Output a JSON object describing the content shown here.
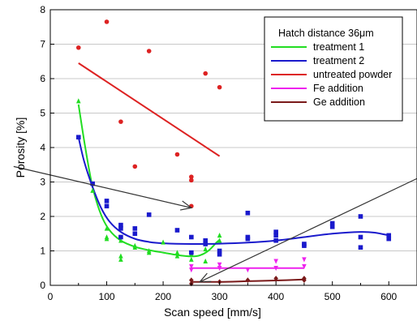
{
  "chart_data": {
    "type": "scatter",
    "title": "",
    "xlabel": "Scan speed [mm/s]",
    "ylabel": "Porosity [%]",
    "xlim": [
      0,
      650
    ],
    "ylim": [
      0,
      8
    ],
    "xticks": [
      0,
      100,
      200,
      300,
      400,
      500,
      600
    ],
    "yticks": [
      0,
      1,
      2,
      3,
      4,
      5,
      6,
      7,
      8
    ],
    "grid": "horizontal",
    "legend_title": "Hatch distance 36μm",
    "legend_position": "top-right",
    "series": [
      {
        "name": "treatment 1",
        "color": "#22dd22",
        "marker": "triangle",
        "points": [
          [
            50,
            5.35
          ],
          [
            75,
            2.75
          ],
          [
            100,
            1.65
          ],
          [
            100,
            1.4
          ],
          [
            100,
            1.35
          ],
          [
            125,
            1.3
          ],
          [
            125,
            0.85
          ],
          [
            125,
            0.75
          ],
          [
            150,
            1.15
          ],
          [
            150,
            1.1
          ],
          [
            175,
            1.0
          ],
          [
            175,
            0.95
          ],
          [
            200,
            1.25
          ],
          [
            225,
            0.95
          ],
          [
            225,
            0.85
          ],
          [
            250,
            0.9
          ],
          [
            250,
            0.75
          ],
          [
            275,
            1.05
          ],
          [
            275,
            0.7
          ],
          [
            300,
            1.45
          ],
          [
            300,
            1.3
          ]
        ],
        "fit": [
          [
            50,
            5.25
          ],
          [
            62,
            4.0
          ],
          [
            75,
            2.85
          ],
          [
            90,
            2.05
          ],
          [
            105,
            1.6
          ],
          [
            125,
            1.3
          ],
          [
            150,
            1.12
          ],
          [
            175,
            1.02
          ],
          [
            200,
            0.95
          ],
          [
            225,
            0.88
          ],
          [
            250,
            0.84
          ],
          [
            265,
            0.87
          ],
          [
            280,
            1.0
          ],
          [
            295,
            1.25
          ],
          [
            300,
            1.32
          ]
        ]
      },
      {
        "name": "treatment 2",
        "color": "#1a1acc",
        "marker": "square",
        "points": [
          [
            50,
            4.3
          ],
          [
            75,
            2.95
          ],
          [
            100,
            2.45
          ],
          [
            100,
            2.3
          ],
          [
            125,
            1.75
          ],
          [
            125,
            1.65
          ],
          [
            125,
            1.4
          ],
          [
            150,
            1.65
          ],
          [
            150,
            1.5
          ],
          [
            175,
            2.05
          ],
          [
            225,
            1.6
          ],
          [
            250,
            1.4
          ],
          [
            250,
            0.95
          ],
          [
            275,
            1.3
          ],
          [
            275,
            1.2
          ],
          [
            300,
            1.0
          ],
          [
            300,
            0.9
          ],
          [
            350,
            2.1
          ],
          [
            350,
            1.4
          ],
          [
            350,
            1.35
          ],
          [
            400,
            1.55
          ],
          [
            400,
            1.45
          ],
          [
            400,
            1.3
          ],
          [
            450,
            1.2
          ],
          [
            450,
            1.15
          ],
          [
            500,
            1.8
          ],
          [
            500,
            1.7
          ],
          [
            550,
            2.0
          ],
          [
            550,
            1.4
          ],
          [
            550,
            1.1
          ],
          [
            600,
            1.45
          ],
          [
            600,
            1.35
          ]
        ],
        "fit": [
          [
            50,
            4.3
          ],
          [
            60,
            3.6
          ],
          [
            75,
            2.85
          ],
          [
            90,
            2.25
          ],
          [
            105,
            1.85
          ],
          [
            125,
            1.55
          ],
          [
            150,
            1.35
          ],
          [
            175,
            1.26
          ],
          [
            200,
            1.22
          ],
          [
            250,
            1.2
          ],
          [
            300,
            1.21
          ],
          [
            350,
            1.24
          ],
          [
            400,
            1.3
          ],
          [
            450,
            1.4
          ],
          [
            500,
            1.5
          ],
          [
            550,
            1.55
          ],
          [
            575,
            1.53
          ],
          [
            600,
            1.45
          ]
        ]
      },
      {
        "name": "untreated powder",
        "color": "#dd2222",
        "marker": "circle",
        "points": [
          [
            50,
            6.9
          ],
          [
            100,
            7.65
          ],
          [
            125,
            4.75
          ],
          [
            150,
            3.45
          ],
          [
            175,
            6.8
          ],
          [
            225,
            3.8
          ],
          [
            250,
            3.15
          ],
          [
            250,
            3.05
          ],
          [
            250,
            2.3
          ],
          [
            275,
            6.15
          ],
          [
            300,
            5.75
          ]
        ],
        "fit": [
          [
            50,
            6.45
          ],
          [
            300,
            3.75
          ]
        ]
      },
      {
        "name": "Fe addition",
        "color": "#ee22ee",
        "marker": "triangle-down",
        "points": [
          [
            250,
            0.55
          ],
          [
            250,
            0.45
          ],
          [
            300,
            0.6
          ],
          [
            300,
            0.5
          ],
          [
            350,
            0.45
          ],
          [
            400,
            0.7
          ],
          [
            400,
            0.5
          ],
          [
            450,
            0.75
          ],
          [
            450,
            0.55
          ]
        ],
        "fit": [
          [
            250,
            0.5
          ],
          [
            450,
            0.5
          ]
        ]
      },
      {
        "name": "Ge addition",
        "color": "#7a1a1a",
        "marker": "diamond",
        "points": [
          [
            250,
            0.15
          ],
          [
            250,
            0.05
          ],
          [
            300,
            0.1
          ],
          [
            350,
            0.15
          ],
          [
            400,
            0.2
          ],
          [
            450,
            0.2
          ],
          [
            450,
            0.15
          ]
        ],
        "fit": [
          [
            250,
            0.1
          ],
          [
            300,
            0.1
          ],
          [
            350,
            0.12
          ],
          [
            400,
            0.14
          ],
          [
            450,
            0.17
          ]
        ]
      }
    ],
    "arrows": [
      {
        "color": "#333333",
        "from": [
          -65,
          3.45
        ],
        "to": [
          250,
          2.25
        ]
      },
      {
        "color": "#333333",
        "from": [
          650,
          3.1
        ],
        "to": [
          265,
          0.1
        ]
      }
    ]
  }
}
